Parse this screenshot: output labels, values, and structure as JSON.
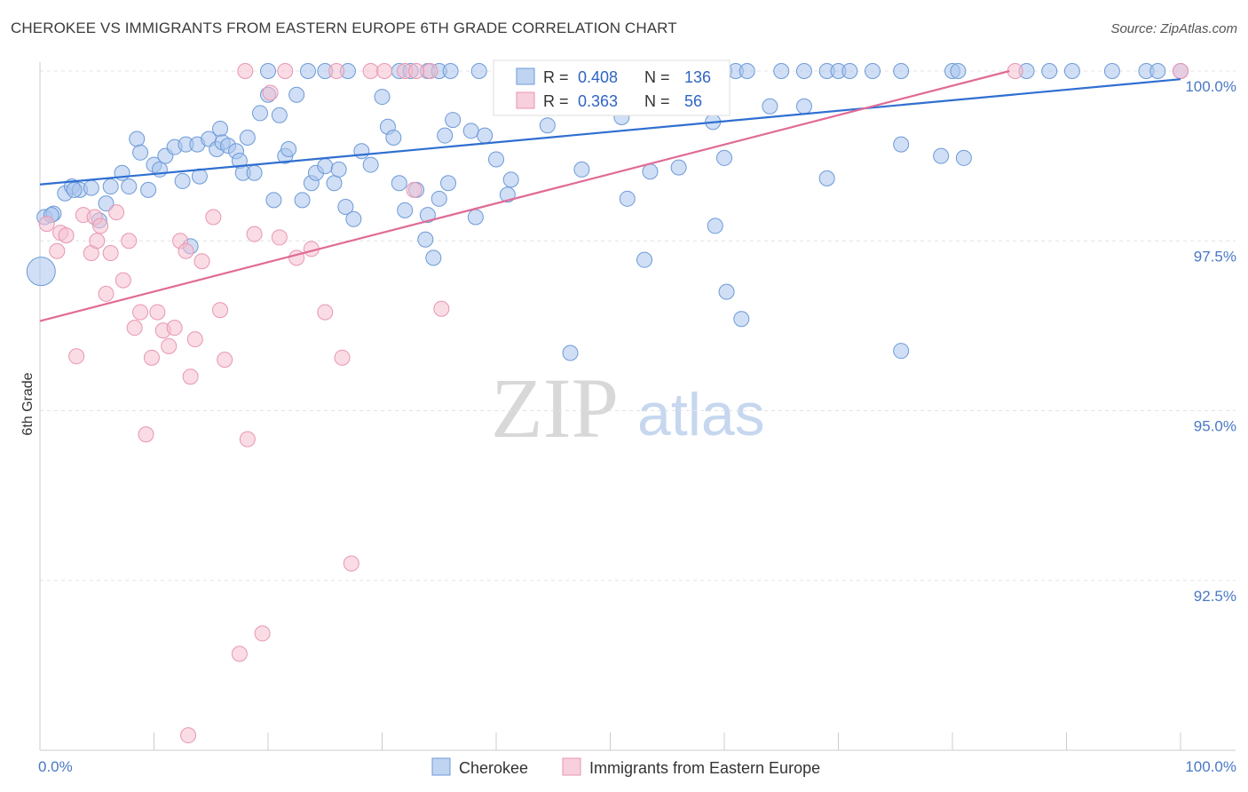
{
  "title": "CHEROKEE VS IMMIGRANTS FROM EASTERN EUROPE 6TH GRADE CORRELATION CHART",
  "source": "Source: ZipAtlas.com",
  "watermark": {
    "zip": "ZIP",
    "atlas": "atlas"
  },
  "colors": {
    "blue_fill": "#a9c5ec",
    "blue_stroke": "#6d9ad8",
    "blue_line": "#2f6fd1",
    "pink_fill": "#f6bfd0",
    "pink_stroke": "#e896b2",
    "pink_line": "#e06b95",
    "tick_text": "#4a78c4",
    "grid": "#e3e3e3"
  },
  "legend_top": {
    "rows": [
      {
        "r_label": "R =",
        "r_value": "0.408",
        "n_label": "N =",
        "n_value": "136"
      },
      {
        "r_label": "R =",
        "r_value": "0.363",
        "n_label": "N =",
        "n_value": "56"
      }
    ]
  },
  "legend_bottom": [
    "Cherokee",
    "Immigrants from Eastern Europe"
  ],
  "chart_data": {
    "type": "scatter",
    "title": "CHEROKEE VS IMMIGRANTS FROM EASTERN EUROPE 6TH GRADE CORRELATION CHART",
    "xlabel": "",
    "ylabel": "6th Grade",
    "xlim": [
      0,
      100
    ],
    "ylim": [
      90.2,
      100.4
    ],
    "x_tick_labels": [
      "0.0%",
      "100.0%"
    ],
    "y_ticks": [
      100.0,
      97.5,
      95.0,
      92.5
    ],
    "y_tick_labels": [
      "100.0%",
      "97.5%",
      "95.0%",
      "92.5%"
    ],
    "grid": true,
    "legend_placement": "top-center",
    "series": [
      {
        "name": "Cherokee",
        "trend": {
          "x": [
            0,
            100
          ],
          "y": [
            98.33,
            99.88
          ]
        },
        "points": [
          [
            0.4,
            97.85
          ],
          [
            1.2,
            97.9
          ],
          [
            2.2,
            98.2
          ],
          [
            2.8,
            98.3
          ],
          [
            3.5,
            98.25
          ],
          [
            4.5,
            98.28
          ],
          [
            5.2,
            97.8
          ],
          [
            5.8,
            98.05
          ],
          [
            6.2,
            98.3
          ],
          [
            7.2,
            98.5
          ],
          [
            7.8,
            98.3
          ],
          [
            8.5,
            99.0
          ],
          [
            8.8,
            98.8
          ],
          [
            9.5,
            98.25
          ],
          [
            10.0,
            98.62
          ],
          [
            10.5,
            98.55
          ],
          [
            11.0,
            98.75
          ],
          [
            11.8,
            98.88
          ],
          [
            12.5,
            98.38
          ],
          [
            12.8,
            98.92
          ],
          [
            13.2,
            97.42
          ],
          [
            13.8,
            98.92
          ],
          [
            14.0,
            98.45
          ],
          [
            14.8,
            99.0
          ],
          [
            15.5,
            98.85
          ],
          [
            15.8,
            99.15
          ],
          [
            16.0,
            98.95
          ],
          [
            16.5,
            98.9
          ],
          [
            17.2,
            98.82
          ],
          [
            17.5,
            98.68
          ],
          [
            17.8,
            98.5
          ],
          [
            18.2,
            99.02
          ],
          [
            18.8,
            98.5
          ],
          [
            19.3,
            99.38
          ],
          [
            20.0,
            99.65
          ],
          [
            20.5,
            98.1
          ],
          [
            21.0,
            99.35
          ],
          [
            21.5,
            98.75
          ],
          [
            21.8,
            98.85
          ],
          [
            22.5,
            99.65
          ],
          [
            23.0,
            98.1
          ],
          [
            23.8,
            98.35
          ],
          [
            24.2,
            98.5
          ],
          [
            25.0,
            98.6
          ],
          [
            25.8,
            98.35
          ],
          [
            26.2,
            98.55
          ],
          [
            26.8,
            98.0
          ],
          [
            27.5,
            97.82
          ],
          [
            28.2,
            98.82
          ],
          [
            29.0,
            98.62
          ],
          [
            30.0,
            99.62
          ],
          [
            30.5,
            99.18
          ],
          [
            31.0,
            99.02
          ],
          [
            31.5,
            98.35
          ],
          [
            32.0,
            97.95
          ],
          [
            33.0,
            98.25
          ],
          [
            33.8,
            97.52
          ],
          [
            34.0,
            97.88
          ],
          [
            34.5,
            97.25
          ],
          [
            35.0,
            98.12
          ],
          [
            35.5,
            99.05
          ],
          [
            35.8,
            98.35
          ],
          [
            36.2,
            99.28
          ],
          [
            37.8,
            99.12
          ],
          [
            38.2,
            97.85
          ],
          [
            39.0,
            99.05
          ],
          [
            40.0,
            98.7
          ],
          [
            41.0,
            98.18
          ],
          [
            41.3,
            98.4
          ],
          [
            44.5,
            99.2
          ],
          [
            46.5,
            95.85
          ],
          [
            47.5,
            98.55
          ],
          [
            51.0,
            99.32
          ],
          [
            51.5,
            98.12
          ],
          [
            53.0,
            97.22
          ],
          [
            53.5,
            98.52
          ],
          [
            56.0,
            98.58
          ],
          [
            59.0,
            99.25
          ],
          [
            59.2,
            97.72
          ],
          [
            60.0,
            98.72
          ],
          [
            60.2,
            96.75
          ],
          [
            61.5,
            96.35
          ],
          [
            64.0,
            99.48
          ],
          [
            67.0,
            99.48
          ],
          [
            69.0,
            98.42
          ],
          [
            75.5,
            95.88
          ],
          [
            75.5,
            98.92
          ],
          [
            79.0,
            98.75
          ],
          [
            81.0,
            98.72
          ],
          [
            1.0,
            97.88
          ],
          [
            3.0,
            98.25
          ],
          [
            20.0,
            100.0
          ],
          [
            23.5,
            100.0
          ],
          [
            25.0,
            100.0
          ],
          [
            27.0,
            100.0
          ],
          [
            31.5,
            100.0
          ],
          [
            32.5,
            100.0
          ],
          [
            34.0,
            100.0
          ],
          [
            35.0,
            100.0
          ],
          [
            36.0,
            100.0
          ],
          [
            38.5,
            100.0
          ],
          [
            40.5,
            100.0
          ],
          [
            43.0,
            100.0
          ],
          [
            44.5,
            100.0
          ],
          [
            46.0,
            100.0
          ],
          [
            47.5,
            100.0
          ],
          [
            49.0,
            100.0
          ],
          [
            50.5,
            100.0
          ],
          [
            52.0,
            100.0
          ],
          [
            53.5,
            100.0
          ],
          [
            55.0,
            100.0
          ],
          [
            56.5,
            100.0
          ],
          [
            58.0,
            100.0
          ],
          [
            60.0,
            100.0
          ],
          [
            61.0,
            100.0
          ],
          [
            62.0,
            100.0
          ],
          [
            65.0,
            100.0
          ],
          [
            67.0,
            100.0
          ],
          [
            69.0,
            100.0
          ],
          [
            70.0,
            100.0
          ],
          [
            71.0,
            100.0
          ],
          [
            73.0,
            100.0
          ],
          [
            75.5,
            100.0
          ],
          [
            80.0,
            100.0
          ],
          [
            80.5,
            100.0
          ],
          [
            86.5,
            100.0
          ],
          [
            88.5,
            100.0
          ],
          [
            90.5,
            100.0
          ],
          [
            94.0,
            100.0
          ],
          [
            97.0,
            100.0
          ],
          [
            98.0,
            100.0
          ],
          [
            100.0,
            100.0
          ],
          [
            47.0,
            99.58
          ],
          [
            50.0,
            99.55
          ],
          [
            44.0,
            99.6
          ],
          [
            0.1,
            97.05
          ]
        ]
      },
      {
        "name": "Immigrants from Eastern Europe",
        "trend": {
          "x": [
            0,
            85
          ],
          "y": [
            96.32,
            100.0
          ]
        },
        "points": [
          [
            0.6,
            97.75
          ],
          [
            1.5,
            97.35
          ],
          [
            1.8,
            97.62
          ],
          [
            2.3,
            97.58
          ],
          [
            3.2,
            95.8
          ],
          [
            3.8,
            97.88
          ],
          [
            4.5,
            97.32
          ],
          [
            4.8,
            97.85
          ],
          [
            5.0,
            97.5
          ],
          [
            5.3,
            97.72
          ],
          [
            5.8,
            96.72
          ],
          [
            6.2,
            97.32
          ],
          [
            6.7,
            97.92
          ],
          [
            7.3,
            96.92
          ],
          [
            7.8,
            97.5
          ],
          [
            8.3,
            96.22
          ],
          [
            8.8,
            96.45
          ],
          [
            9.3,
            94.65
          ],
          [
            9.8,
            95.78
          ],
          [
            10.3,
            96.45
          ],
          [
            10.8,
            96.18
          ],
          [
            11.3,
            95.95
          ],
          [
            11.8,
            96.22
          ],
          [
            12.3,
            97.5
          ],
          [
            12.8,
            97.35
          ],
          [
            13.2,
            95.5
          ],
          [
            13.6,
            96.05
          ],
          [
            14.2,
            97.2
          ],
          [
            15.2,
            97.85
          ],
          [
            15.8,
            96.48
          ],
          [
            16.2,
            95.75
          ],
          [
            18.2,
            94.58
          ],
          [
            18.8,
            97.6
          ],
          [
            19.5,
            91.72
          ],
          [
            20.2,
            99.68
          ],
          [
            21.0,
            97.55
          ],
          [
            22.5,
            97.25
          ],
          [
            23.8,
            97.38
          ],
          [
            25.0,
            96.45
          ],
          [
            26.5,
            95.78
          ],
          [
            27.3,
            92.75
          ],
          [
            32.8,
            98.25
          ],
          [
            35.2,
            96.5
          ],
          [
            17.5,
            91.42
          ],
          [
            13.0,
            90.22
          ],
          [
            18.0,
            100.0
          ],
          [
            21.5,
            100.0
          ],
          [
            26.0,
            100.0
          ],
          [
            29.0,
            100.0
          ],
          [
            30.2,
            100.0
          ],
          [
            32.0,
            100.0
          ],
          [
            34.2,
            100.0
          ],
          [
            53.0,
            100.0
          ],
          [
            85.5,
            100.0
          ],
          [
            100.0,
            100.0
          ],
          [
            33.0,
            100.0
          ]
        ]
      }
    ]
  }
}
